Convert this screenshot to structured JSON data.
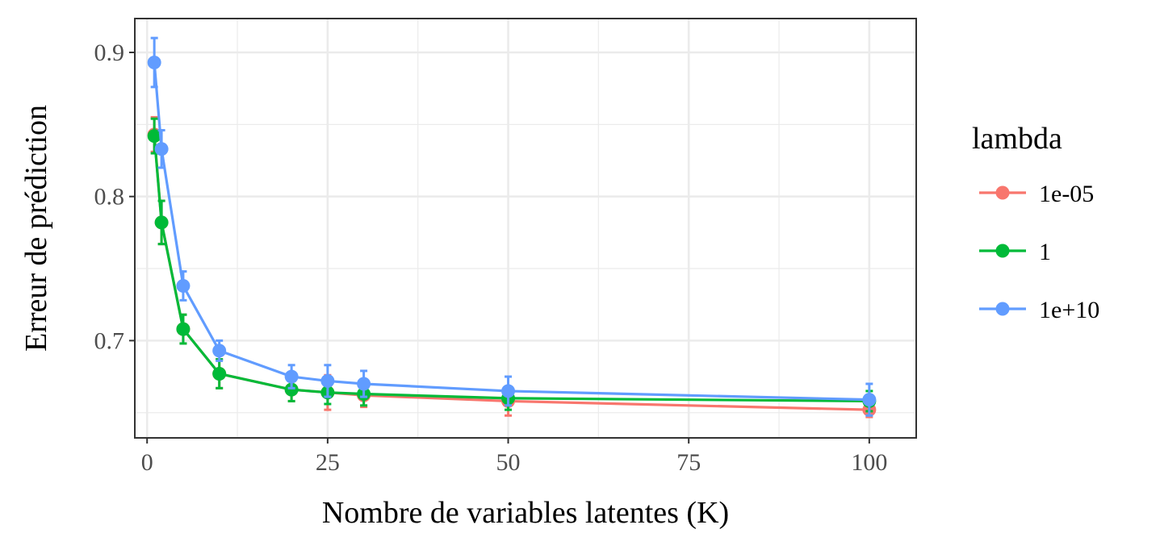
{
  "chart_data": {
    "type": "line",
    "title": "",
    "xlabel": "Nombre de variables latentes (K)",
    "ylabel": "Erreur de prédiction",
    "xlim": [
      -1.7,
      106.5
    ],
    "ylim": [
      0.6325,
      0.9235
    ],
    "x_ticks": [
      0,
      25,
      50,
      75,
      100
    ],
    "x_tick_labels": [
      "0",
      "25",
      "50",
      "75",
      "100"
    ],
    "y_ticks": [
      0.7,
      0.8,
      0.9
    ],
    "y_tick_labels": [
      "0.7",
      "0.8",
      "0.9"
    ],
    "grid": true,
    "legend": {
      "title": "lambda",
      "position": "right"
    },
    "series": [
      {
        "name": "1e-05",
        "color": "#F8766D",
        "x": [
          1,
          2,
          5,
          10,
          20,
          25,
          30,
          50,
          100
        ],
        "y": [
          0.843,
          0.782,
          0.708,
          0.677,
          0.666,
          0.664,
          0.662,
          0.658,
          0.652
        ],
        "err": [
          0.012,
          0.015,
          0.01,
          0.01,
          0.008,
          0.012,
          0.008,
          0.01,
          0.005
        ]
      },
      {
        "name": "1",
        "color": "#00BA38",
        "x": [
          1,
          2,
          5,
          10,
          20,
          25,
          30,
          50,
          100
        ],
        "y": [
          0.842,
          0.782,
          0.708,
          0.677,
          0.666,
          0.664,
          0.663,
          0.66,
          0.658
        ],
        "err": [
          0.012,
          0.015,
          0.01,
          0.01,
          0.008,
          0.008,
          0.008,
          0.008,
          0.007
        ]
      },
      {
        "name": "1e+10",
        "color": "#619CFF",
        "x": [
          1,
          2,
          5,
          10,
          20,
          25,
          30,
          50,
          100
        ],
        "y": [
          0.893,
          0.833,
          0.738,
          0.693,
          0.675,
          0.672,
          0.67,
          0.665,
          0.659
        ],
        "err": [
          0.017,
          0.013,
          0.01,
          0.007,
          0.008,
          0.011,
          0.009,
          0.01,
          0.011
        ]
      }
    ]
  }
}
